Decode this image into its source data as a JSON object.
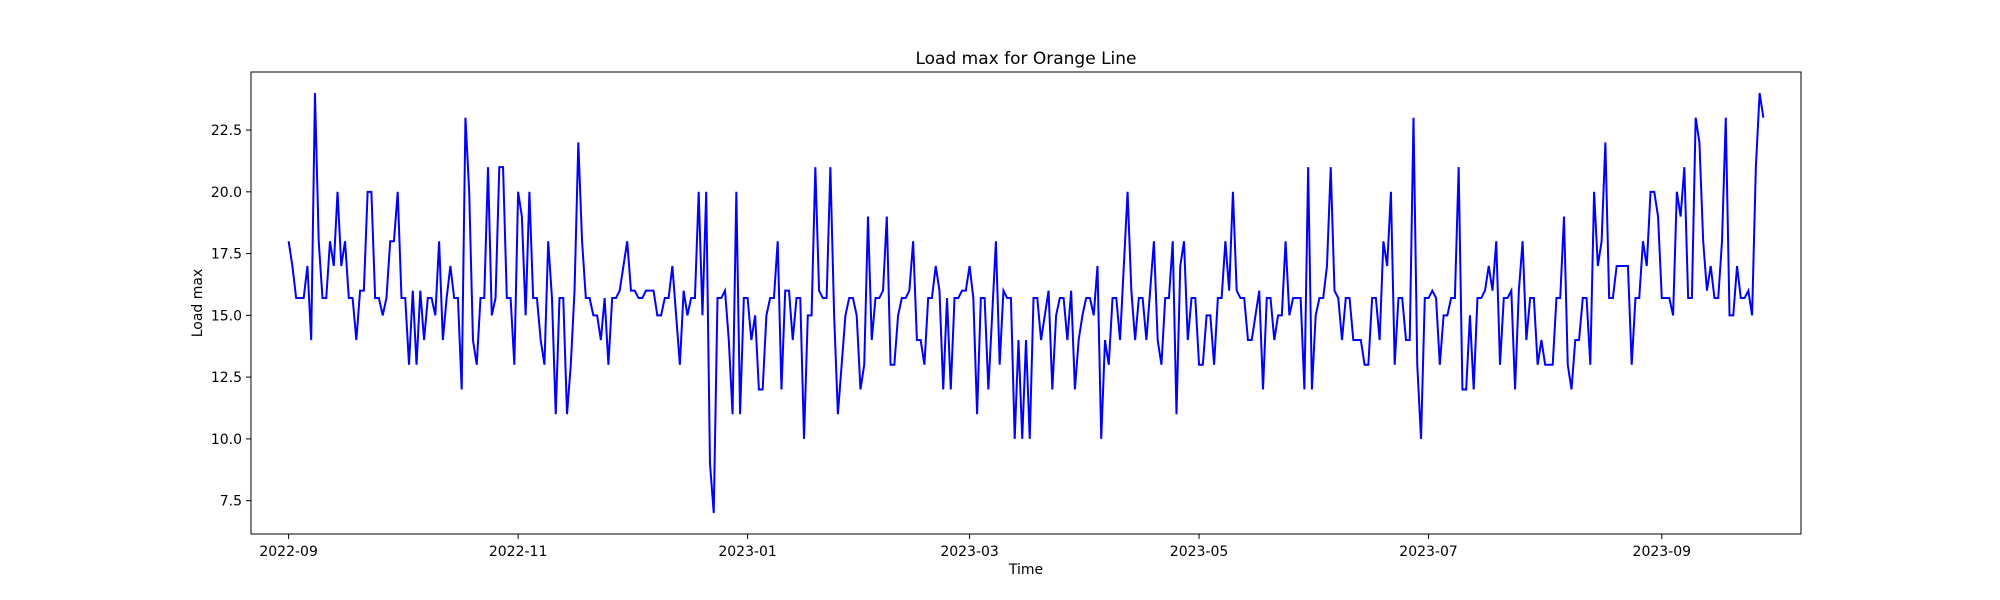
{
  "chart_data": {
    "type": "line",
    "title": "Load max for Orange Line",
    "xlabel": "Time",
    "ylabel": "Load max",
    "x_range": [
      "2022-08-22",
      "2023-10-08"
    ],
    "y_range": [
      6.15,
      24.85
    ],
    "x_ticks": [
      "2022-09",
      "2022-11",
      "2023-01",
      "2023-03",
      "2023-05",
      "2023-07",
      "2023-09"
    ],
    "y_ticks": [
      7.5,
      10.0,
      12.5,
      15.0,
      17.5,
      20.0,
      22.5
    ],
    "grid": false,
    "legend": "none",
    "series": [
      {
        "color": "#0000ff",
        "start_date": "2022-09-01",
        "end_date": "2023-09-30",
        "values": [
          18,
          17,
          15.7,
          15.7,
          15.7,
          17,
          14,
          24,
          18,
          15.7,
          15.7,
          18,
          17,
          20,
          17,
          18,
          15.7,
          15.7,
          14,
          16,
          16,
          20,
          20,
          15.7,
          15.7,
          15,
          15.7,
          18,
          18,
          20,
          15.7,
          15.7,
          13,
          16,
          13,
          16,
          14,
          15.7,
          15.7,
          15,
          18,
          14,
          15.7,
          17,
          15.7,
          15.7,
          12,
          23,
          20,
          14,
          13,
          15.7,
          15.7,
          21,
          15,
          15.7,
          21,
          21,
          15.7,
          15.7,
          13,
          20,
          19,
          15,
          20,
          15.7,
          15.7,
          14,
          13,
          18,
          15.7,
          11,
          15.7,
          15.7,
          11,
          13,
          16,
          22,
          18,
          15.7,
          15.7,
          15,
          15,
          14,
          15.7,
          13,
          15.7,
          15.7,
          16,
          17,
          18,
          16,
          16,
          15.7,
          15.7,
          16,
          16,
          16,
          15,
          15,
          15.7,
          15.7,
          17,
          15,
          13,
          16,
          15,
          15.7,
          15.7,
          20,
          15,
          20,
          9,
          7,
          15.7,
          15.7,
          16,
          14,
          11,
          20,
          11,
          15.7,
          15.7,
          14,
          15,
          12,
          12,
          15,
          15.7,
          15.7,
          18,
          12,
          16,
          16,
          14,
          15.7,
          15.7,
          10,
          15,
          15,
          21,
          16,
          15.7,
          15.7,
          21,
          15,
          11,
          13,
          15,
          15.7,
          15.7,
          15,
          12,
          13,
          19,
          14,
          15.7,
          15.7,
          16,
          19,
          13,
          13,
          15,
          15.7,
          15.7,
          16,
          18,
          14,
          14,
          13,
          15.7,
          15.7,
          17,
          16,
          12,
          15.7,
          12,
          15.7,
          15.7,
          16,
          16,
          17,
          15.7,
          11,
          15.7,
          15.7,
          12,
          15,
          18,
          13,
          16,
          15.7,
          15.7,
          10,
          14,
          10,
          14,
          10,
          15.7,
          15.7,
          14,
          15,
          16,
          12,
          15,
          15.7,
          15.7,
          14,
          16,
          12,
          14,
          15,
          15.7,
          15.7,
          15,
          17,
          10,
          14,
          13,
          15.7,
          15.7,
          14,
          17,
          20,
          16,
          14,
          15.7,
          15.7,
          14,
          16,
          18,
          14,
          13,
          15.7,
          15.7,
          18,
          11,
          17,
          18,
          14,
          15.7,
          15.7,
          13,
          13,
          15,
          15,
          13,
          15.7,
          15.7,
          18,
          16,
          20,
          16,
          15.7,
          15.7,
          14,
          14,
          15,
          16,
          12,
          15.7,
          15.7,
          14,
          15,
          15,
          18,
          15,
          15.7,
          15.7,
          15.7,
          12,
          21,
          12,
          15,
          15.7,
          15.7,
          17,
          21,
          16,
          15.7,
          14,
          15.7,
          15.7,
          14,
          14,
          14,
          13,
          13,
          15.7,
          15.7,
          14,
          18,
          17,
          20,
          13,
          15.7,
          15.7,
          14,
          14,
          23,
          13,
          10,
          15.7,
          15.7,
          16,
          15.7,
          13,
          15,
          15,
          15.7,
          15.7,
          21,
          12,
          12,
          15,
          12,
          15.7,
          15.7,
          16,
          17,
          16,
          18,
          13,
          15.7,
          15.7,
          16,
          12,
          16,
          18,
          14,
          15.7,
          15.7,
          13,
          14,
          13,
          13,
          13,
          15.7,
          15.7,
          19,
          13,
          12,
          14,
          14,
          15.7,
          15.7,
          13,
          20,
          17,
          18,
          22,
          15.7,
          15.7,
          17,
          17,
          17,
          17,
          13,
          15.7,
          15.7,
          18,
          17,
          20,
          20,
          19,
          15.7,
          15.7,
          15.7,
          15,
          20,
          19,
          21,
          15.7,
          15.7,
          23,
          22,
          18,
          16,
          17,
          15.7,
          15.7,
          18,
          23,
          15,
          15,
          17,
          15.7,
          15.7,
          16,
          15,
          21,
          24,
          23
        ]
      }
    ]
  }
}
